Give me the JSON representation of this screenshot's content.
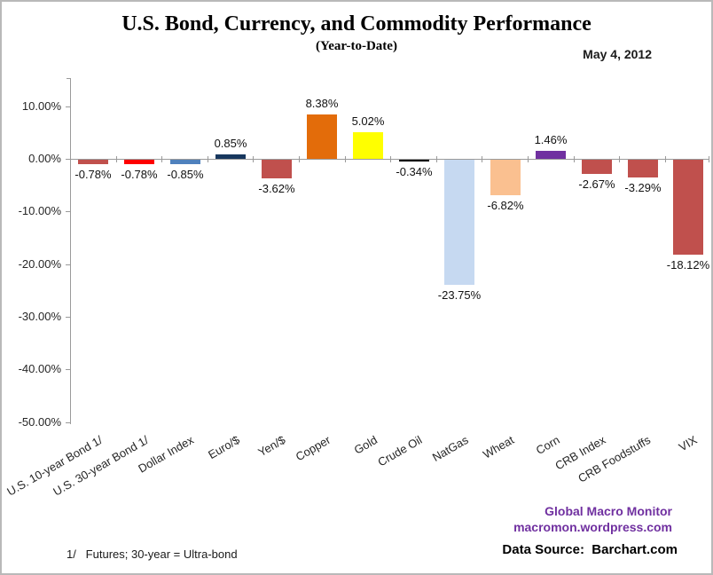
{
  "header": {
    "title": "U.S. Bond, Currency, and Commodity Performance",
    "subtitle": "(Year-to-Date)",
    "date_label": "May 4, 2012"
  },
  "chart_data": {
    "type": "bar",
    "title": "U.S. Bond, Currency, and Commodity Performance (Year-to-Date)",
    "categories": [
      "U.S. 10-year Bond 1/",
      "U.S. 30-year Bond 1/",
      "Dollar Index",
      "Euro/$",
      "Yen/$",
      "Copper",
      "Gold",
      "Crude Oil",
      "NatGas",
      "Wheat",
      "Corn",
      "CRB Index",
      "CRB Foodstuffs",
      "VIX"
    ],
    "values": [
      -0.78,
      -0.78,
      -0.85,
      0.85,
      -3.62,
      8.38,
      5.02,
      -0.34,
      -23.75,
      -6.82,
      1.46,
      -2.67,
      -3.29,
      -18.12
    ],
    "value_labels": [
      "-0.78%",
      "-0.78%",
      "-0.85%",
      "0.85%",
      "-3.62%",
      "8.38%",
      "5.02%",
      "-0.34%",
      "-23.75%",
      "-6.82%",
      "1.46%",
      "-2.67%",
      "-3.29%",
      "-18.12%"
    ],
    "bar_colors": [
      "#C0504D",
      "#FE0000",
      "#4F81BD",
      "#17375E",
      "#C0504D",
      "#E36C0A",
      "#FFFF00",
      "#000000",
      "#C6D9F1",
      "#FAC090",
      "#7030A0",
      "#C0504D",
      "#C0504D",
      "#C0504D"
    ],
    "y_ticks": [
      "10.00%",
      "0.00%",
      "-10.00%",
      "-20.00%",
      "-30.00%",
      "-40.00%",
      "-50.00%"
    ],
    "y_tick_values": [
      10,
      0,
      -10,
      -20,
      -30,
      -40,
      -50
    ],
    "ylim": [
      -50,
      15
    ],
    "unit": "percent",
    "grid": false,
    "legend": "none"
  },
  "footer": {
    "footnote": "1/   Futures; 30-year = Ultra-bond",
    "brand_line1": "Global Macro Monitor",
    "brand_line2": "macromon.wordpress.com",
    "data_source": "Data Source:  Barchart.com"
  },
  "colors": {
    "brand_purple": "#7030A0",
    "axis_gray": "#9a9a9a",
    "negative_default": "#C0504D",
    "frame_border": "#b9b9b9"
  }
}
